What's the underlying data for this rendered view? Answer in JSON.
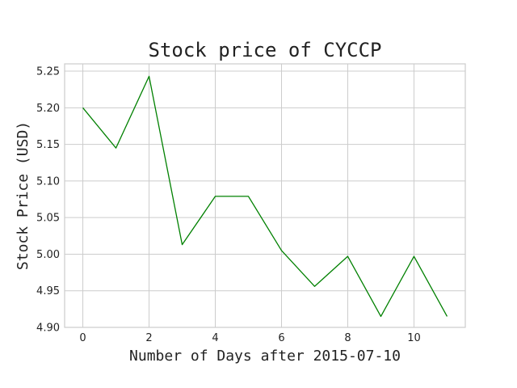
{
  "chart_data": {
    "type": "line",
    "title": "Stock price of CYCCP",
    "xlabel": "Number of Days after 2015-07-10",
    "ylabel": "Stock Price (USD)",
    "xlim": [
      -0.55,
      11.55
    ],
    "ylim": [
      4.9,
      5.26
    ],
    "xticks": [
      0,
      2,
      4,
      6,
      8,
      10
    ],
    "yticks": [
      4.9,
      4.95,
      5.0,
      5.05,
      5.1,
      5.15,
      5.2,
      5.25
    ],
    "grid": true,
    "series": [
      {
        "color": "#008000",
        "x": [
          0,
          1,
          2,
          3,
          4,
          5,
          6,
          7,
          8,
          9,
          10,
          11
        ],
        "values": [
          5.2,
          5.145,
          5.243,
          5.013,
          5.079,
          5.079,
          5.005,
          4.956,
          4.997,
          4.915,
          4.997,
          4.915
        ]
      }
    ]
  }
}
